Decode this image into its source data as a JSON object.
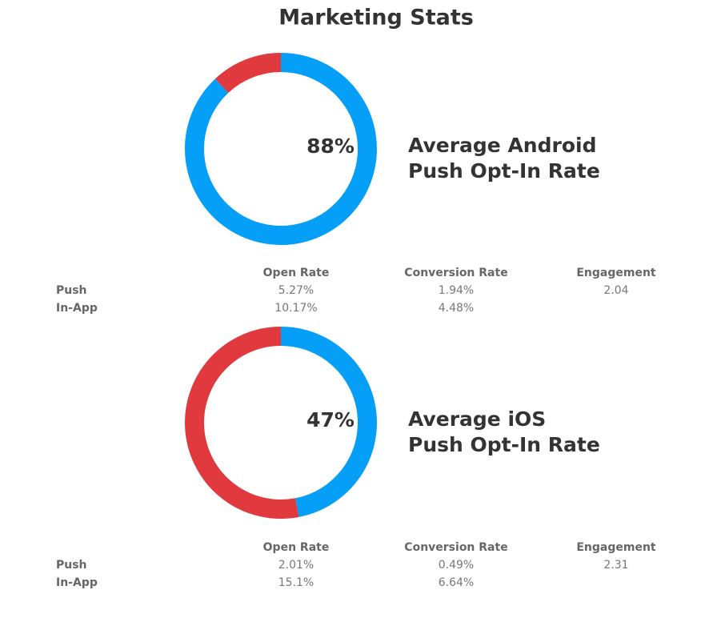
{
  "title": "Marketing Stats",
  "chart_data": [
    {
      "type": "donut",
      "title_lines": [
        "Average Android",
        "Push Opt-In Rate"
      ],
      "center_label": "88%",
      "values": [
        88,
        12
      ],
      "colors": [
        "#069ff8",
        "#e03a3e"
      ]
    },
    {
      "type": "donut",
      "title_lines": [
        "Average iOS",
        "Push Opt-In Rate"
      ],
      "center_label": "47%",
      "values": [
        47,
        53
      ],
      "colors": [
        "#069ff8",
        "#e03a3e"
      ]
    }
  ],
  "tables": [
    {
      "columns": [
        "Open Rate",
        "Conversion Rate",
        "Engagement"
      ],
      "rows": [
        {
          "label": "Push",
          "cells": [
            "5.27%",
            "1.94%",
            "2.04"
          ]
        },
        {
          "label": "In-App",
          "cells": [
            "10.17%",
            "4.48%"
          ]
        }
      ]
    },
    {
      "columns": [
        "Open Rate",
        "Conversion Rate",
        "Engagement"
      ],
      "rows": [
        {
          "label": "Push",
          "cells": [
            "2.01%",
            "0.49%",
            "2.31"
          ]
        },
        {
          "label": "In-App",
          "cells": [
            "15.1%",
            "6.64%"
          ]
        }
      ]
    }
  ]
}
